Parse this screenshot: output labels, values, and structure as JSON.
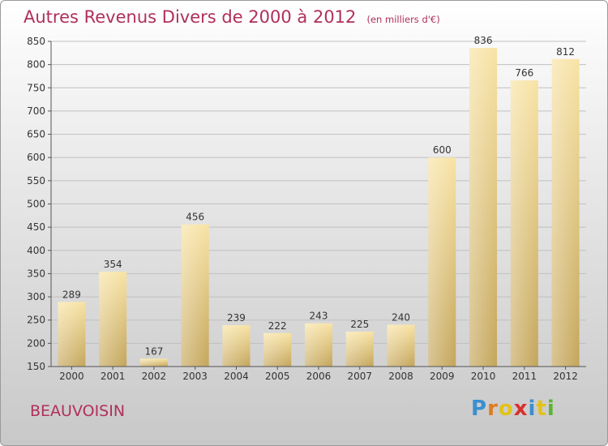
{
  "title": "Autres Revenus Divers de 2000 à 2012",
  "subtitle": "(en milliers d'€)",
  "commune": "BEAUVOISIN",
  "logo": {
    "text": "Proxiti",
    "letter_colors": [
      "#3a8fd0",
      "#e07b1f",
      "#e3c21a",
      "#d9302c",
      "#3a8fd0",
      "#e3c21a",
      "#5ab531"
    ]
  },
  "colors": {
    "title": "#b0305a",
    "bar_light": "#f8e3a4",
    "bar_dark": "#c4a55a",
    "axis": "#555555",
    "grid": "#c0c0c0"
  },
  "chart_data": {
    "type": "bar",
    "categories": [
      "2000",
      "2001",
      "2002",
      "2003",
      "2004",
      "2005",
      "2006",
      "2007",
      "2008",
      "2009",
      "2010",
      "2011",
      "2012"
    ],
    "values": [
      289,
      354,
      167,
      456,
      239,
      222,
      243,
      225,
      240,
      600,
      836,
      766,
      812
    ],
    "ylim": [
      150,
      850
    ],
    "yticks": [
      150,
      200,
      250,
      300,
      350,
      400,
      450,
      500,
      550,
      600,
      650,
      700,
      750,
      800,
      850
    ],
    "grid": true,
    "data_labels": true
  }
}
